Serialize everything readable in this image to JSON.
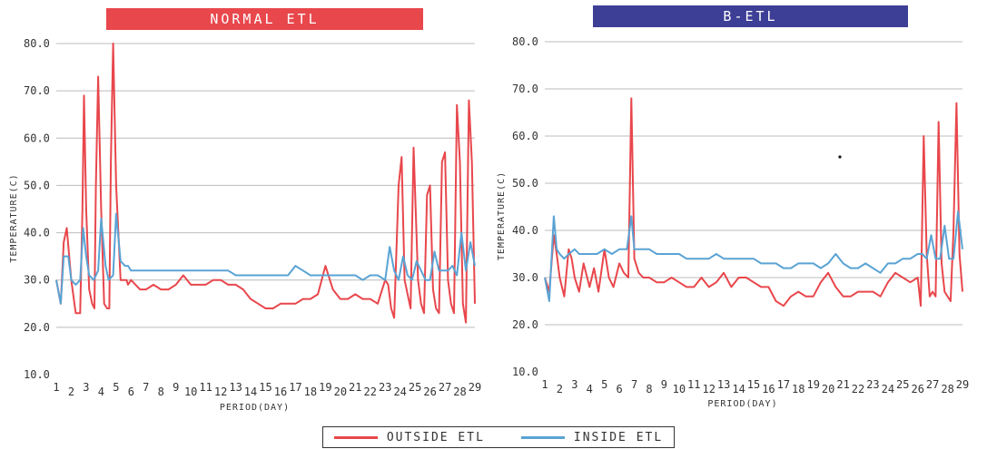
{
  "colors": {
    "outside": "#e8474c",
    "inside": "#5aa3d4",
    "banner_left": "#e8474c",
    "banner_right": "#3d3f96",
    "grid": "#bcbcbc",
    "axis_text": "#333333"
  },
  "legend": [
    {
      "name": "OUTSIDE ETL",
      "series": "outside"
    },
    {
      "name": "INSIDE ETL",
      "series": "inside"
    }
  ],
  "chart_data": [
    {
      "type": "line",
      "title": "NORMAL ETL",
      "xlabel": "PERIOD(DAY)",
      "ylabel": "TEMPERATURE(C)",
      "ylim": [
        10,
        80
      ],
      "xlim": [
        1,
        29
      ],
      "yticks": [
        "10.0",
        "20.0",
        "30.0",
        "40.0",
        "50.0",
        "60.0",
        "70.0",
        "80.0"
      ],
      "xticks": [
        "1",
        "2",
        "3",
        "4",
        "5",
        "6",
        "7",
        "8",
        "9",
        "10",
        "11",
        "12",
        "13",
        "14",
        "15",
        "16",
        "17",
        "18",
        "19",
        "20",
        "21",
        "22",
        "23",
        "24",
        "25",
        "26",
        "27",
        "28",
        "29"
      ],
      "grid": true,
      "series": [
        {
          "name": "OUTSIDE ETL",
          "x": [
            1,
            1.3,
            1.5,
            1.7,
            2,
            2.3,
            2.6,
            2.75,
            2.85,
            3,
            3.2,
            3.4,
            3.55,
            3.65,
            3.8,
            4,
            4.2,
            4.4,
            4.55,
            4.65,
            4.8,
            5,
            5.3,
            5.5,
            5.6,
            5.7,
            5.8,
            6,
            6.3,
            6.6,
            7,
            7.5,
            8,
            8.5,
            9,
            9.5,
            10,
            10.5,
            11,
            11.5,
            12,
            12.5,
            13,
            13.5,
            14,
            14.5,
            15,
            15.5,
            16,
            16.5,
            17,
            17.5,
            18,
            18.5,
            19,
            19.5,
            20,
            20.5,
            21,
            21.5,
            22,
            22.5,
            23,
            23.2,
            23.4,
            23.6,
            23.9,
            24.1,
            24.3,
            24.5,
            24.7,
            24.9,
            25.2,
            25.4,
            25.6,
            25.8,
            26,
            26.2,
            26.4,
            26.6,
            26.8,
            27,
            27.2,
            27.4,
            27.6,
            27.8,
            28,
            28.2,
            28.4,
            28.6,
            28.8,
            29
          ],
          "y": [
            30,
            25,
            38,
            41,
            30,
            23,
            23,
            45,
            69,
            45,
            28,
            25,
            24,
            50,
            73,
            45,
            25,
            24,
            24,
            55,
            80,
            50,
            30,
            30,
            30,
            30,
            29,
            30,
            29,
            28,
            28,
            29,
            28,
            28,
            29,
            31,
            29,
            29,
            29,
            30,
            30,
            29,
            29,
            28,
            26,
            25,
            24,
            24,
            25,
            25,
            25,
            26,
            26,
            27,
            33,
            28,
            26,
            26,
            27,
            26,
            26,
            25,
            30,
            29,
            24,
            22,
            50,
            56,
            30,
            27,
            24,
            58,
            30,
            25,
            23,
            48,
            50,
            28,
            24,
            23,
            55,
            57,
            30,
            25,
            23,
            67,
            55,
            25,
            21,
            68,
            55,
            25
          ],
          "dense": true
        },
        {
          "name": "INSIDE ETL",
          "x": [
            1,
            1.3,
            1.5,
            1.8,
            2,
            2.3,
            2.6,
            2.8,
            3,
            3.2,
            3.5,
            3.8,
            4,
            4.3,
            4.5,
            4.8,
            5,
            5.3,
            5.6,
            5.8,
            6,
            6.5,
            7,
            7.5,
            8,
            8.5,
            9,
            9.5,
            10,
            10.5,
            11,
            11.5,
            12,
            12.5,
            13,
            13.5,
            14,
            14.5,
            15,
            15.5,
            16,
            16.5,
            17,
            17.5,
            18,
            18.5,
            19,
            19.5,
            20,
            20.5,
            21,
            21.5,
            22,
            22.5,
            23,
            23.3,
            23.6,
            23.9,
            24.2,
            24.5,
            24.8,
            25.1,
            25.4,
            25.7,
            26,
            26.3,
            26.6,
            26.9,
            27.2,
            27.5,
            27.8,
            28.1,
            28.4,
            28.7,
            29
          ],
          "y": [
            30,
            25,
            35,
            35,
            30,
            29,
            30,
            41,
            35,
            31,
            30,
            32,
            43,
            33,
            30,
            31,
            44,
            34,
            33,
            33,
            32,
            32,
            32,
            32,
            32,
            32,
            32,
            32,
            32,
            32,
            32,
            32,
            32,
            32,
            31,
            31,
            31,
            31,
            31,
            31,
            31,
            31,
            33,
            32,
            31,
            31,
            31,
            31,
            31,
            31,
            31,
            30,
            31,
            31,
            30,
            37,
            32,
            30,
            35,
            31,
            30,
            34,
            32,
            30,
            30,
            36,
            32,
            32,
            32,
            33,
            31,
            40,
            32,
            38,
            33
          ],
          "dense": false
        }
      ]
    },
    {
      "type": "line",
      "title": "B-ETL",
      "xlabel": "PERIOD(DAY)",
      "ylabel": "TEMPERATURE(C)",
      "ylim": [
        10,
        80
      ],
      "xlim": [
        1,
        29
      ],
      "yticks": [
        "10.0",
        "20.0",
        "30.0",
        "40.0",
        "50.0",
        "60.0",
        "70.0",
        "80.0"
      ],
      "xticks": [
        "1",
        "2",
        "3",
        "4",
        "5",
        "6",
        "7",
        "8",
        "9",
        "10",
        "11",
        "12",
        "13",
        "14",
        "15",
        "16",
        "17",
        "18",
        "19",
        "20",
        "21",
        "22",
        "23",
        "24",
        "25",
        "26",
        "27",
        "28",
        "29"
      ],
      "grid": true,
      "series": [
        {
          "name": "OUTSIDE ETL",
          "x": [
            1,
            1.3,
            1.6,
            1.8,
            2,
            2.3,
            2.6,
            2.8,
            3,
            3.3,
            3.6,
            4,
            4.3,
            4.6,
            5,
            5.3,
            5.6,
            6,
            6.3,
            6.6,
            6.8,
            7,
            7.3,
            7.6,
            8,
            8.5,
            9,
            9.5,
            10,
            10.5,
            11,
            11.5,
            12,
            12.5,
            13,
            13.5,
            14,
            14.5,
            15,
            15.5,
            16,
            16.5,
            17,
            17.5,
            18,
            18.5,
            19,
            19.5,
            20,
            20.5,
            21,
            21.5,
            22,
            22.5,
            23,
            23.5,
            24,
            24.5,
            25,
            25.5,
            26,
            26.2,
            26.4,
            26.6,
            26.8,
            27,
            27.2,
            27.4,
            27.6,
            27.8,
            28,
            28.2,
            28.4,
            28.6,
            28.8,
            29
          ],
          "y": [
            30,
            27,
            39,
            35,
            30,
            26,
            36,
            34,
            30,
            27,
            33,
            28,
            32,
            27,
            36,
            30,
            28,
            33,
            31,
            30,
            68,
            34,
            31,
            30,
            30,
            29,
            29,
            30,
            29,
            28,
            28,
            30,
            28,
            29,
            31,
            28,
            30,
            30,
            29,
            28,
            28,
            25,
            24,
            26,
            27,
            26,
            26,
            29,
            31,
            28,
            26,
            26,
            27,
            27,
            27,
            26,
            29,
            31,
            30,
            29,
            30,
            24,
            60,
            35,
            26,
            27,
            26,
            63,
            33,
            27,
            26,
            25,
            40,
            67,
            35,
            27
          ],
          "dense": false
        },
        {
          "name": "INSIDE ETL",
          "x": [
            1,
            1.3,
            1.6,
            1.8,
            2,
            2.3,
            2.6,
            3,
            3.3,
            3.6,
            4,
            4.5,
            5,
            5.5,
            6,
            6.5,
            6.8,
            7,
            7.5,
            8,
            8.5,
            9,
            9.5,
            10,
            10.5,
            11,
            11.5,
            12,
            12.5,
            13,
            13.5,
            14,
            14.5,
            15,
            15.5,
            16,
            16.5,
            17,
            17.5,
            18,
            18.5,
            19,
            19.5,
            20,
            20.5,
            21,
            21.5,
            22,
            22.5,
            23,
            23.5,
            24,
            24.5,
            25,
            25.5,
            26,
            26.3,
            26.6,
            26.9,
            27.2,
            27.5,
            27.8,
            28.1,
            28.4,
            28.7,
            29
          ],
          "y": [
            30,
            25,
            43,
            36,
            35,
            34,
            35,
            36,
            35,
            35,
            35,
            35,
            36,
            35,
            36,
            36,
            43,
            36,
            36,
            36,
            35,
            35,
            35,
            35,
            34,
            34,
            34,
            34,
            35,
            34,
            34,
            34,
            34,
            34,
            33,
            33,
            33,
            32,
            32,
            33,
            33,
            33,
            32,
            33,
            35,
            33,
            32,
            32,
            33,
            32,
            31,
            33,
            33,
            34,
            34,
            35,
            35,
            34,
            39,
            34,
            34,
            41,
            34,
            34,
            44,
            36
          ],
          "dense": false
        }
      ]
    }
  ]
}
